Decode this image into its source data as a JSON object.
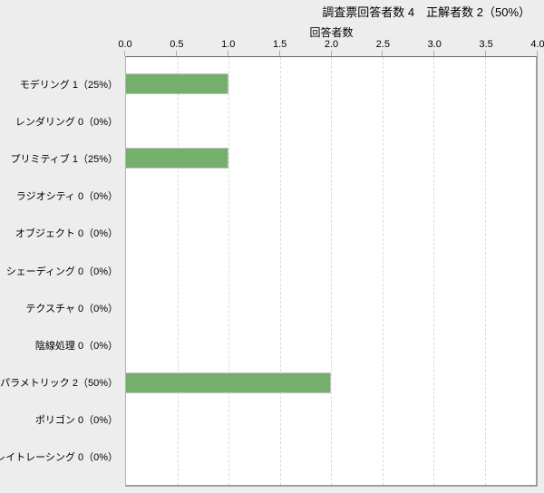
{
  "header": {
    "title": "調査票回答者数 4　正解者数 2（50%）"
  },
  "colors": {
    "page_background": "#ededed",
    "plot_background": "#ffffff",
    "bar_fill": "#74b06c",
    "bar_border": "#c3c3c3",
    "gridline": "#dbdbdb",
    "axis_line": "#666666"
  },
  "chart_data": {
    "type": "bar",
    "orientation": "horizontal",
    "title": "調査票回答者数 4　正解者数 2（50%）",
    "xlabel": "回答者数",
    "xlim": [
      0,
      4
    ],
    "xtick_labels": [
      "0.0",
      "0.5",
      "1.0",
      "1.5",
      "2.0",
      "2.5",
      "3.0",
      "3.5",
      "4.0"
    ],
    "grid": "vertical dashed gridline at every 0.5 step",
    "legend": "none",
    "categories": [
      "モデリング",
      "レンダリング",
      "プリミティブ",
      "ラジオシティ",
      "オブジェクト",
      "シェーディング",
      "テクスチャ",
      "陰線処理",
      "パラメトリック",
      "ポリゴン",
      "レイトレーシング"
    ],
    "values": [
      1,
      0,
      1,
      0,
      0,
      0,
      0,
      0,
      2,
      0,
      0
    ],
    "percents": [
      "25%",
      "0%",
      "25%",
      "0%",
      "0%",
      "0%",
      "0%",
      "0%",
      "50%",
      "0%",
      "0%"
    ],
    "category_labels": [
      "モデリング 1（25%）",
      "レンダリング 0（0%）",
      "プリミティブ 1（25%）",
      "ラジオシティ 0（0%）",
      "オブジェクト 0（0%）",
      "シェーディング 0（0%）",
      "テクスチャ 0（0%）",
      "陰線処理 0（0%）",
      "パラメトリック 2（50%）",
      "ポリゴン 0（0%）",
      "レイトレーシング 0（0%）"
    ]
  }
}
